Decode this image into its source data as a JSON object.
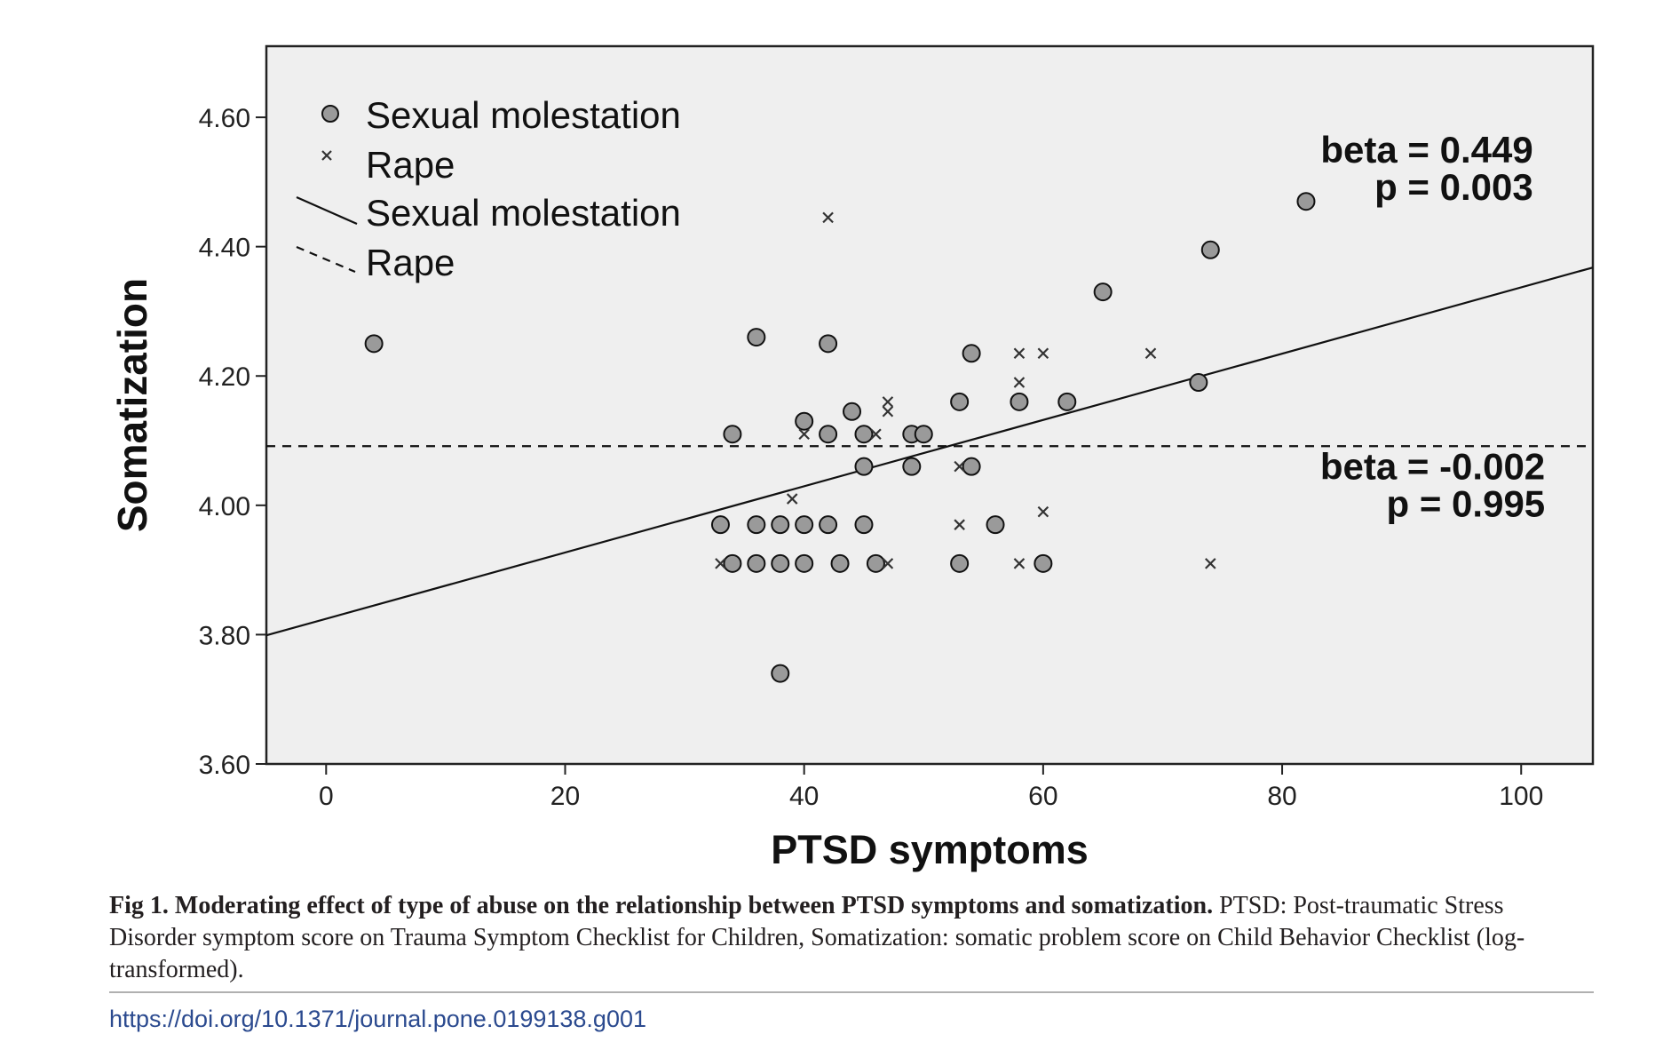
{
  "chart_data": {
    "type": "scatter",
    "xlabel": "PTSD symptoms",
    "ylabel": "Somatization",
    "xlim": [
      -5,
      106
    ],
    "ylim": [
      3.6,
      4.71
    ],
    "x_ticks": [
      0,
      20,
      40,
      60,
      80,
      100
    ],
    "y_ticks": [
      "3.60",
      "3.80",
      "4.00",
      "4.20",
      "4.40",
      "4.60"
    ],
    "grid": false,
    "plot_background": "#efefef",
    "legend": {
      "placement": "top-left",
      "entries": [
        "Sexual molestation",
        "Rape",
        "Sexual molestation",
        "Rape"
      ]
    },
    "series": [
      {
        "name": "Sexual molestation",
        "marker": "circle",
        "color": "#9a9a9a",
        "points": [
          [
            4,
            4.25
          ],
          [
            34,
            4.11
          ],
          [
            33,
            3.97
          ],
          [
            34,
            3.91
          ],
          [
            36,
            4.26
          ],
          [
            36,
            3.97
          ],
          [
            36,
            3.91
          ],
          [
            38,
            3.97
          ],
          [
            38,
            3.91
          ],
          [
            38,
            3.74
          ],
          [
            40,
            4.13
          ],
          [
            40,
            3.97
          ],
          [
            40,
            3.91
          ],
          [
            42,
            4.25
          ],
          [
            42,
            4.11
          ],
          [
            42,
            3.97
          ],
          [
            43,
            3.91
          ],
          [
            44,
            4.145
          ],
          [
            45,
            4.11
          ],
          [
            45,
            4.06
          ],
          [
            45,
            3.97
          ],
          [
            46,
            3.91
          ],
          [
            49,
            4.11
          ],
          [
            49,
            4.06
          ],
          [
            50,
            4.11
          ],
          [
            53,
            4.16
          ],
          [
            53,
            3.91
          ],
          [
            54,
            4.235
          ],
          [
            54,
            4.06
          ],
          [
            56,
            3.97
          ],
          [
            58,
            4.16
          ],
          [
            60,
            3.91
          ],
          [
            62,
            4.16
          ],
          [
            65,
            4.33
          ],
          [
            73,
            4.19
          ],
          [
            74,
            4.395
          ],
          [
            82,
            4.47
          ]
        ]
      },
      {
        "name": "Rape",
        "marker": "x",
        "color": "#333333",
        "points": [
          [
            42,
            4.445
          ],
          [
            47,
            4.16
          ],
          [
            47,
            4.145
          ],
          [
            46,
            4.11
          ],
          [
            40,
            4.11
          ],
          [
            39,
            4.01
          ],
          [
            33,
            3.91
          ],
          [
            47,
            3.91
          ],
          [
            53,
            4.06
          ],
          [
            53,
            3.97
          ],
          [
            58,
            4.235
          ],
          [
            58,
            4.19
          ],
          [
            58,
            3.91
          ],
          [
            60,
            4.235
          ],
          [
            60,
            3.99
          ],
          [
            69,
            4.235
          ],
          [
            74,
            3.91
          ]
        ]
      }
    ],
    "fit_lines": [
      {
        "name": "Sexual molestation",
        "style": "solid",
        "intercept": 3.8245,
        "slope": 0.005125
      },
      {
        "name": "Rape",
        "style": "dashed",
        "intercept": 4.0915,
        "slope": -0.0
      }
    ],
    "annotations": [
      {
        "lines": [
          "beta = 0.449",
          "p = 0.003"
        ],
        "x": 101,
        "y": 4.53
      },
      {
        "lines": [
          "beta = -0.002",
          "p = 0.995"
        ],
        "x": 102,
        "y": 4.04
      }
    ]
  },
  "caption": {
    "label": "Fig 1.",
    "title": "Moderating effect of type of abuse on the relationship between PTSD symptoms and somatization.",
    "body": "PTSD: Post-traumatic Stress Disorder symptom score on Trauma Symptom Checklist for Children, Somatization: somatic problem score on Child Behavior Checklist (log-transformed)."
  },
  "doi": "https://doi.org/10.1371/journal.pone.0199138.g001"
}
